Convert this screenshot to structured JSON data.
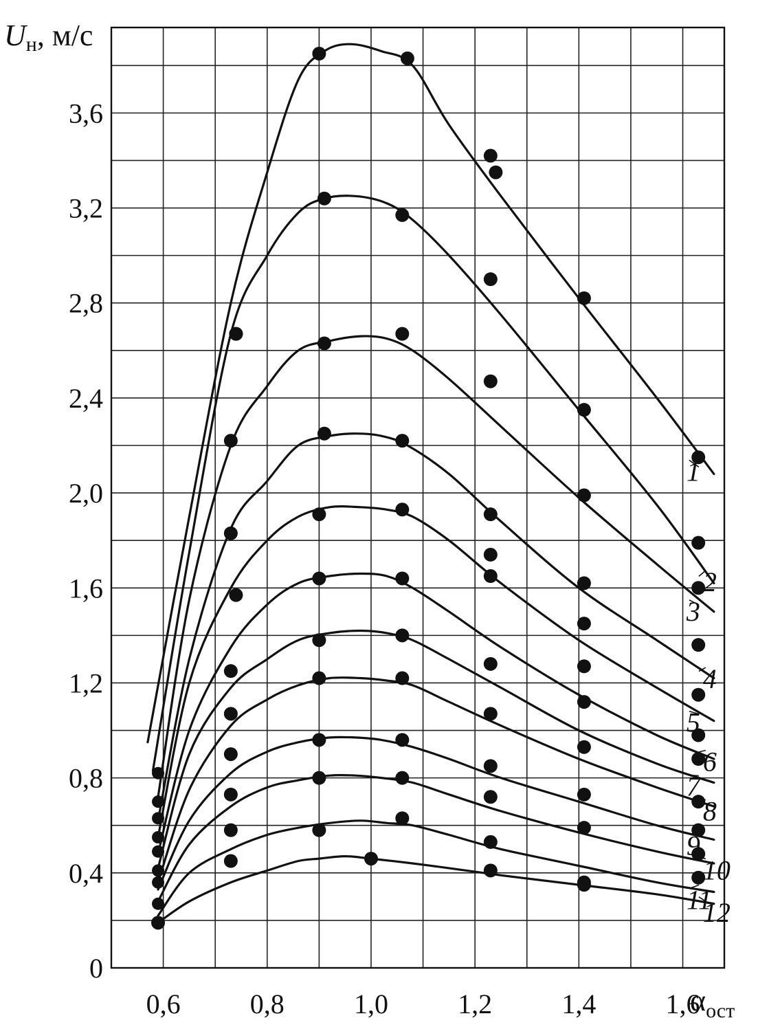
{
  "chart_data": {
    "type": "line",
    "title": "",
    "ylabel": "U",
    "ylabel_subscript": "н",
    "ylabel_unit": ", м/с",
    "xlabel": "α",
    "xlabel_subscript": "ост",
    "xlim": [
      0.5,
      1.68
    ],
    "ylim": [
      0,
      3.96
    ],
    "grid": true,
    "x_ticks": [
      "0,6",
      "0,8",
      "1,0",
      "1,2",
      "1,4",
      "1,6"
    ],
    "y_ticks": [
      "0",
      "0,4",
      "0,8",
      "1,2",
      "1,6",
      "2,0",
      "2,4",
      "2,8",
      "3,2",
      "3,6"
    ],
    "series": [
      {
        "name": "1",
        "curve": [
          [
            0.57,
            0.95
          ],
          [
            0.65,
            1.9
          ],
          [
            0.73,
            2.8
          ],
          [
            0.8,
            3.35
          ],
          [
            0.86,
            3.74
          ],
          [
            0.91,
            3.86
          ],
          [
            0.96,
            3.89
          ],
          [
            1.02,
            3.86
          ],
          [
            1.08,
            3.8
          ],
          [
            1.15,
            3.55
          ],
          [
            1.25,
            3.25
          ],
          [
            1.4,
            2.82
          ],
          [
            1.55,
            2.4
          ],
          [
            1.66,
            2.08
          ]
        ],
        "points": [
          [
            0.9,
            3.85
          ],
          [
            1.07,
            3.83
          ],
          [
            1.23,
            3.42
          ],
          [
            1.24,
            3.35
          ],
          [
            1.41,
            2.82
          ],
          [
            1.63,
            2.15
          ]
        ]
      },
      {
        "name": "2",
        "curve": [
          [
            0.58,
            0.83
          ],
          [
            0.65,
            1.75
          ],
          [
            0.73,
            2.67
          ],
          [
            0.8,
            3.0
          ],
          [
            0.86,
            3.18
          ],
          [
            0.91,
            3.24
          ],
          [
            0.97,
            3.25
          ],
          [
            1.03,
            3.22
          ],
          [
            1.08,
            3.15
          ],
          [
            1.15,
            3.0
          ],
          [
            1.25,
            2.75
          ],
          [
            1.4,
            2.35
          ],
          [
            1.55,
            1.95
          ],
          [
            1.66,
            1.62
          ]
        ],
        "points": [
          [
            0.74,
            2.67
          ],
          [
            0.91,
            3.24
          ],
          [
            1.06,
            3.17
          ],
          [
            1.23,
            2.9
          ],
          [
            1.41,
            2.35
          ],
          [
            1.63,
            1.79
          ]
        ]
      },
      {
        "name": "3",
        "curve": [
          [
            0.59,
            0.72
          ],
          [
            0.65,
            1.55
          ],
          [
            0.73,
            2.2
          ],
          [
            0.8,
            2.45
          ],
          [
            0.86,
            2.6
          ],
          [
            0.92,
            2.64
          ],
          [
            0.98,
            2.66
          ],
          [
            1.03,
            2.65
          ],
          [
            1.08,
            2.6
          ],
          [
            1.15,
            2.48
          ],
          [
            1.25,
            2.28
          ],
          [
            1.4,
            1.98
          ],
          [
            1.55,
            1.7
          ],
          [
            1.66,
            1.5
          ]
        ],
        "points": [
          [
            0.74,
            2.67
          ],
          [
            0.91,
            2.63
          ],
          [
            1.06,
            2.67
          ],
          [
            1.23,
            2.47
          ],
          [
            1.41,
            1.99
          ],
          [
            1.63,
            1.6
          ]
        ]
      },
      {
        "name": "4",
        "curve": [
          [
            0.59,
            0.62
          ],
          [
            0.65,
            1.3
          ],
          [
            0.73,
            1.85
          ],
          [
            0.8,
            2.05
          ],
          [
            0.86,
            2.2
          ],
          [
            0.92,
            2.24
          ],
          [
            0.97,
            2.25
          ],
          [
            1.02,
            2.24
          ],
          [
            1.07,
            2.2
          ],
          [
            1.15,
            2.08
          ],
          [
            1.25,
            1.88
          ],
          [
            1.4,
            1.6
          ],
          [
            1.55,
            1.38
          ],
          [
            1.66,
            1.22
          ]
        ],
        "points": [
          [
            0.73,
            2.22
          ],
          [
            0.91,
            2.25
          ],
          [
            1.06,
            2.22
          ],
          [
            1.23,
            1.91
          ],
          [
            1.41,
            1.62
          ],
          [
            1.63,
            1.36
          ]
        ]
      },
      {
        "name": "5",
        "curve": [
          [
            0.59,
            0.55
          ],
          [
            0.65,
            1.2
          ],
          [
            0.73,
            1.6
          ],
          [
            0.8,
            1.8
          ],
          [
            0.86,
            1.9
          ],
          [
            0.92,
            1.94
          ],
          [
            0.98,
            1.94
          ],
          [
            1.03,
            1.93
          ],
          [
            1.08,
            1.9
          ],
          [
            1.15,
            1.8
          ],
          [
            1.25,
            1.62
          ],
          [
            1.4,
            1.38
          ],
          [
            1.55,
            1.18
          ],
          [
            1.66,
            1.04
          ]
        ],
        "points": [
          [
            0.73,
            1.83
          ],
          [
            0.9,
            1.91
          ],
          [
            1.06,
            1.93
          ],
          [
            1.23,
            1.74
          ],
          [
            1.41,
            1.45
          ],
          [
            1.63,
            1.15
          ]
        ]
      },
      {
        "name": "6",
        "curve": [
          [
            0.59,
            0.48
          ],
          [
            0.65,
            1.0
          ],
          [
            0.73,
            1.35
          ],
          [
            0.8,
            1.53
          ],
          [
            0.86,
            1.62
          ],
          [
            0.92,
            1.65
          ],
          [
            0.98,
            1.66
          ],
          [
            1.03,
            1.65
          ],
          [
            1.08,
            1.6
          ],
          [
            1.15,
            1.5
          ],
          [
            1.25,
            1.35
          ],
          [
            1.4,
            1.15
          ],
          [
            1.55,
            0.98
          ],
          [
            1.66,
            0.88
          ]
        ],
        "points": [
          [
            0.74,
            1.57
          ],
          [
            0.9,
            1.64
          ],
          [
            1.06,
            1.64
          ],
          [
            1.23,
            1.65
          ],
          [
            1.41,
            1.27
          ],
          [
            1.63,
            0.98
          ]
        ]
      },
      {
        "name": "7",
        "curve": [
          [
            0.59,
            0.42
          ],
          [
            0.65,
            0.9
          ],
          [
            0.73,
            1.18
          ],
          [
            0.8,
            1.3
          ],
          [
            0.86,
            1.38
          ],
          [
            0.92,
            1.41
          ],
          [
            0.98,
            1.42
          ],
          [
            1.03,
            1.41
          ],
          [
            1.08,
            1.38
          ],
          [
            1.15,
            1.3
          ],
          [
            1.25,
            1.18
          ],
          [
            1.4,
            1.0
          ],
          [
            1.55,
            0.86
          ],
          [
            1.66,
            0.78
          ]
        ],
        "points": [
          [
            0.73,
            1.25
          ],
          [
            0.9,
            1.38
          ],
          [
            1.06,
            1.4
          ],
          [
            1.23,
            1.28
          ],
          [
            1.41,
            1.12
          ],
          [
            1.63,
            0.88
          ]
        ]
      },
      {
        "name": "8",
        "curve": [
          [
            0.59,
            0.36
          ],
          [
            0.65,
            0.75
          ],
          [
            0.73,
            1.02
          ],
          [
            0.8,
            1.13
          ],
          [
            0.86,
            1.19
          ],
          [
            0.92,
            1.22
          ],
          [
            0.98,
            1.22
          ],
          [
            1.03,
            1.21
          ],
          [
            1.08,
            1.19
          ],
          [
            1.15,
            1.12
          ],
          [
            1.25,
            1.02
          ],
          [
            1.4,
            0.88
          ],
          [
            1.55,
            0.76
          ],
          [
            1.66,
            0.68
          ]
        ],
        "points": [
          [
            0.73,
            1.07
          ],
          [
            0.9,
            1.22
          ],
          [
            1.06,
            1.22
          ],
          [
            1.23,
            1.07
          ],
          [
            1.41,
            0.93
          ],
          [
            1.63,
            0.7
          ]
        ]
      },
      {
        "name": "9",
        "curve": [
          [
            0.59,
            0.33
          ],
          [
            0.65,
            0.62
          ],
          [
            0.73,
            0.82
          ],
          [
            0.8,
            0.91
          ],
          [
            0.86,
            0.95
          ],
          [
            0.92,
            0.97
          ],
          [
            0.97,
            0.97
          ],
          [
            1.02,
            0.96
          ],
          [
            1.08,
            0.93
          ],
          [
            1.15,
            0.88
          ],
          [
            1.25,
            0.8
          ],
          [
            1.4,
            0.7
          ],
          [
            1.55,
            0.6
          ],
          [
            1.66,
            0.54
          ]
        ],
        "points": [
          [
            0.73,
            0.9
          ],
          [
            0.9,
            0.96
          ],
          [
            1.06,
            0.96
          ],
          [
            1.23,
            0.85
          ],
          [
            1.41,
            0.73
          ],
          [
            1.63,
            0.58
          ]
        ]
      },
      {
        "name": "10",
        "curve": [
          [
            0.59,
            0.28
          ],
          [
            0.65,
            0.52
          ],
          [
            0.73,
            0.68
          ],
          [
            0.8,
            0.76
          ],
          [
            0.86,
            0.79
          ],
          [
            0.92,
            0.81
          ],
          [
            0.97,
            0.81
          ],
          [
            1.02,
            0.8
          ],
          [
            1.08,
            0.78
          ],
          [
            1.15,
            0.73
          ],
          [
            1.25,
            0.66
          ],
          [
            1.4,
            0.57
          ],
          [
            1.55,
            0.49
          ],
          [
            1.66,
            0.44
          ]
        ],
        "points": [
          [
            0.73,
            0.73
          ],
          [
            0.9,
            0.8
          ],
          [
            1.06,
            0.8
          ],
          [
            1.23,
            0.72
          ],
          [
            1.41,
            0.59
          ],
          [
            1.63,
            0.48
          ]
        ]
      },
      {
        "name": "11",
        "curve": [
          [
            0.59,
            0.22
          ],
          [
            0.65,
            0.4
          ],
          [
            0.73,
            0.5
          ],
          [
            0.8,
            0.56
          ],
          [
            0.86,
            0.59
          ],
          [
            0.92,
            0.61
          ],
          [
            0.98,
            0.62
          ],
          [
            1.03,
            0.61
          ],
          [
            1.08,
            0.6
          ],
          [
            1.15,
            0.56
          ],
          [
            1.25,
            0.5
          ],
          [
            1.4,
            0.43
          ],
          [
            1.55,
            0.36
          ],
          [
            1.66,
            0.32
          ]
        ],
        "points": [
          [
            0.73,
            0.58
          ],
          [
            0.9,
            0.58
          ],
          [
            1.06,
            0.63
          ],
          [
            1.23,
            0.53
          ],
          [
            1.41,
            0.36
          ],
          [
            1.63,
            0.38
          ]
        ]
      },
      {
        "name": "12",
        "curve": [
          [
            0.59,
            0.19
          ],
          [
            0.65,
            0.28
          ],
          [
            0.73,
            0.36
          ],
          [
            0.8,
            0.41
          ],
          [
            0.86,
            0.45
          ],
          [
            0.9,
            0.46
          ],
          [
            0.95,
            0.47
          ],
          [
            1.0,
            0.46
          ],
          [
            1.08,
            0.44
          ],
          [
            1.15,
            0.42
          ],
          [
            1.25,
            0.39
          ],
          [
            1.4,
            0.35
          ],
          [
            1.55,
            0.31
          ],
          [
            1.66,
            0.27
          ]
        ],
        "points": [
          [
            0.59,
            0.19
          ],
          [
            0.73,
            0.45
          ],
          [
            1.0,
            0.46
          ],
          [
            1.23,
            0.41
          ],
          [
            1.41,
            0.35
          ]
        ]
      }
    ],
    "extra_points": [
      [
        0.59,
        0.82
      ],
      [
        0.59,
        0.7
      ],
      [
        0.59,
        0.63
      ],
      [
        0.59,
        0.55
      ],
      [
        0.59,
        0.49
      ],
      [
        0.59,
        0.41
      ],
      [
        0.59,
        0.36
      ],
      [
        0.59,
        0.27
      ]
    ]
  }
}
